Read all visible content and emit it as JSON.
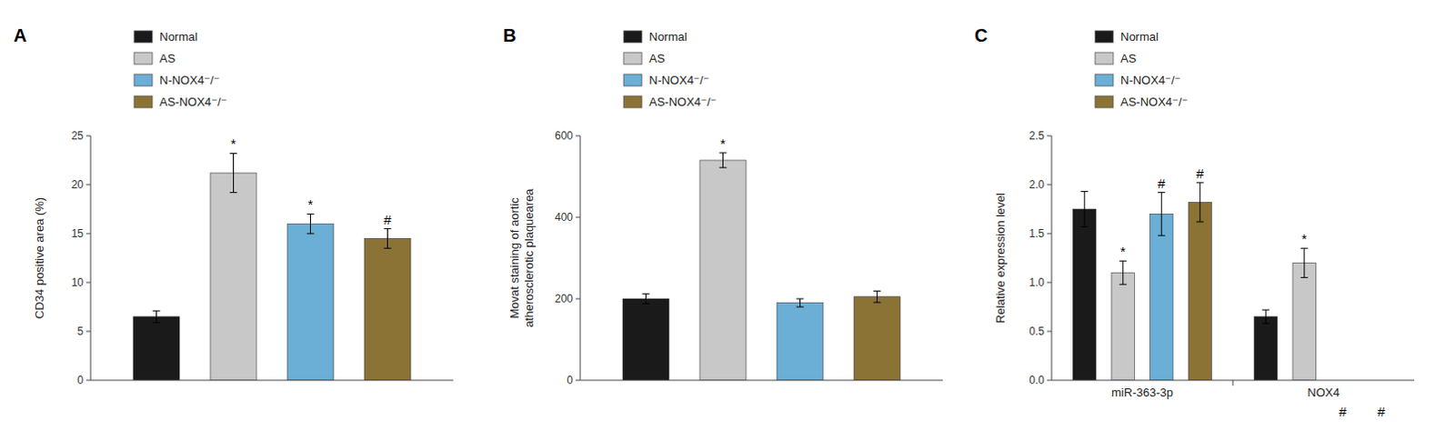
{
  "chart_data": [
    {
      "type": "bar",
      "title": "A",
      "ylabel": "CD34 positive area (%)",
      "categories": [
        null
      ],
      "series": [
        {
          "name": "Normal",
          "color": "#1a1a1a",
          "values": [
            6.5
          ],
          "errors": [
            0.6
          ]
        },
        {
          "name": "AS",
          "color": "#c8c8c8",
          "values": [
            21.2
          ],
          "errors": [
            2.0
          ],
          "annotations": [
            "*"
          ]
        },
        {
          "name": "N-NOX4⁻/⁻",
          "color": "#6baed6",
          "values": [
            16.0
          ],
          "errors": [
            1.0
          ],
          "annotations": [
            "*"
          ]
        },
        {
          "name": "AS-NOX4⁻/⁻",
          "color": "#8B7335",
          "values": [
            14.5
          ],
          "errors": [
            1.0
          ],
          "annotations": [
            "#"
          ]
        }
      ],
      "ylim": [
        0,
        25
      ],
      "yticks": [
        0,
        5,
        10,
        15,
        20,
        25
      ],
      "grid": false,
      "legend": "top"
    },
    {
      "type": "bar",
      "title": "B",
      "ylabel": "Movat staining of aortic\natherosclerotic plaquearea",
      "categories": [
        null
      ],
      "series": [
        {
          "name": "Normal",
          "color": "#1a1a1a",
          "values": [
            200
          ],
          "errors": [
            12
          ]
        },
        {
          "name": "AS",
          "color": "#c8c8c8",
          "values": [
            540
          ],
          "errors": [
            18
          ],
          "annotations": [
            "*"
          ]
        },
        {
          "name": "N-NOX4⁻/⁻",
          "color": "#6baed6",
          "values": [
            190
          ],
          "errors": [
            10
          ]
        },
        {
          "name": "AS-NOX4⁻/⁻",
          "color": "#8B7335",
          "values": [
            205
          ],
          "errors": [
            14
          ]
        }
      ],
      "ylim": [
        0,
        600
      ],
      "yticks": [
        0,
        200,
        400,
        600
      ],
      "grid": false,
      "legend": "top"
    },
    {
      "type": "bar",
      "title": "C",
      "ylabel": "Relative expression level",
      "categories": [
        "miR-363-3p",
        "NOX4"
      ],
      "series": [
        {
          "name": "Normal",
          "color": "#1a1a1a",
          "values": [
            1.75,
            0.65
          ],
          "errors": [
            0.18,
            0.07
          ]
        },
        {
          "name": "AS",
          "color": "#c8c8c8",
          "values": [
            1.1,
            1.2
          ],
          "errors": [
            0.12,
            0.15
          ],
          "annotations": [
            "*",
            "*"
          ]
        },
        {
          "name": "N-NOX4⁻/⁻",
          "color": "#6baed6",
          "values": [
            1.7,
            null
          ],
          "errors": [
            0.22,
            null
          ],
          "annotations": [
            "#",
            "#"
          ]
        },
        {
          "name": "AS-NOX4⁻/⁻",
          "color": "#8B7335",
          "values": [
            1.82,
            null
          ],
          "errors": [
            0.2,
            null
          ],
          "annotations": [
            "#",
            "#"
          ]
        }
      ],
      "ylim": [
        0,
        2.5
      ],
      "yticks": [
        {
          "value": 0.0,
          "label": "0.0"
        },
        0.5,
        {
          "value": 1.0,
          "label": "1.0"
        },
        1.5,
        {
          "value": 2.0,
          "label": "2.0"
        },
        2.5
      ],
      "grid": false,
      "legend": "top"
    }
  ]
}
